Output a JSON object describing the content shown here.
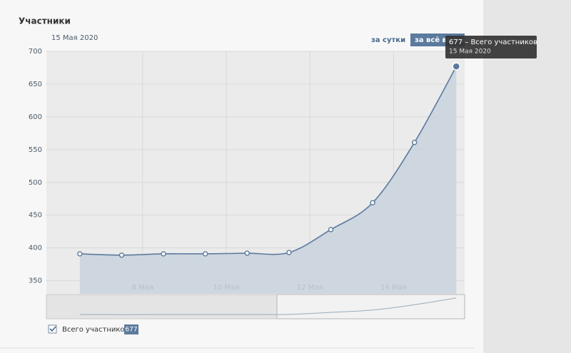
{
  "chart_data": {
    "type": "line",
    "title": "Участники",
    "date_label": "15 Мая 2020",
    "buttons": [
      "за сутки",
      "за всё время"
    ],
    "x": [
      6.5,
      7.5,
      8.5,
      9.5,
      10.5,
      11.5,
      12.5,
      13.5,
      14.5,
      15.5
    ],
    "series": [
      {
        "name": "Всего участников",
        "color": "#5b7a9e",
        "values": [
          391,
          389,
          391,
          391,
          392,
          393,
          428,
          469,
          561,
          677
        ]
      }
    ],
    "xlim": [
      5.7,
      15.7
    ],
    "xticks": [
      {
        "value": 8,
        "label": "8 Мая"
      },
      {
        "value": 10,
        "label": "10 Мая"
      },
      {
        "value": 12,
        "label": "12 Мая"
      },
      {
        "value": 14,
        "label": "14 Мая"
      }
    ],
    "ylim": [
      330,
      700
    ],
    "yticks": [
      350,
      400,
      450,
      500,
      550,
      600,
      650,
      700
    ],
    "grid": true,
    "tooltip": {
      "text": "677 – Всего участников",
      "date": "15 Мая 2020"
    }
  }
}
